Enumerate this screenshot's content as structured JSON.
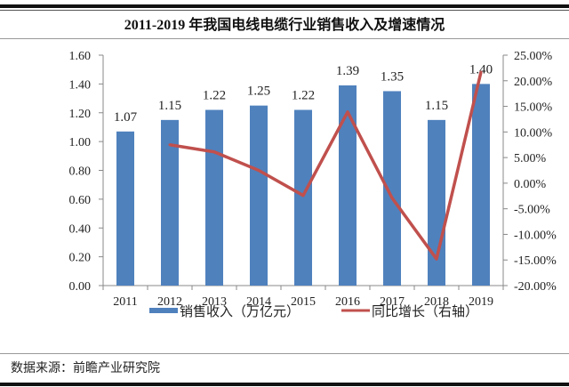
{
  "chart_data": {
    "type": "bar+line",
    "title": "2011-2019 年我国电线电缆行业销售收入及增速情况",
    "categories": [
      "2011",
      "2012",
      "2013",
      "2014",
      "2015",
      "2016",
      "2017",
      "2018",
      "2019"
    ],
    "series": [
      {
        "name": "销售收入（万亿元）",
        "type": "bar",
        "axis": "left",
        "color": "#4f81bd",
        "values": [
          1.07,
          1.15,
          1.22,
          1.25,
          1.22,
          1.39,
          1.35,
          1.15,
          1.4
        ],
        "data_labels": [
          "1.07",
          "1.15",
          "1.22",
          "1.25",
          "1.22",
          "1.39",
          "1.35",
          "1.15",
          "1.40"
        ]
      },
      {
        "name": "同比增长（右轴）",
        "type": "line",
        "axis": "right",
        "color": "#c0504d",
        "values": [
          null,
          7.5,
          6.1,
          2.5,
          -2.4,
          13.9,
          -2.9,
          -14.8,
          21.7
        ]
      }
    ],
    "ylim_left": [
      0,
      1.6
    ],
    "yticks_left": [
      "0.00",
      "0.20",
      "0.40",
      "0.60",
      "0.80",
      "1.00",
      "1.20",
      "1.40",
      "1.60"
    ],
    "ylim_right": [
      -20,
      25
    ],
    "yticks_right": [
      "-20.00%",
      "-15.00%",
      "-10.00%",
      "-5.00%",
      "0.00%",
      "5.00%",
      "10.00%",
      "15.00%",
      "20.00%",
      "25.00%"
    ],
    "grid": false,
    "legend": "bottom"
  },
  "source": "数据来源：前瞻产业研究院"
}
